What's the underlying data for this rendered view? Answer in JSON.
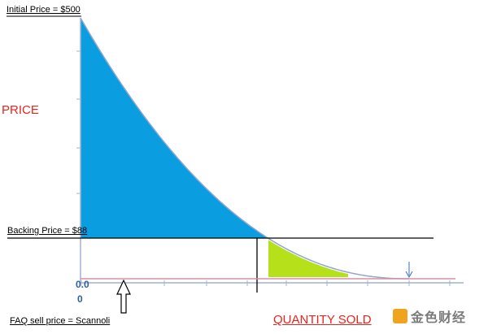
{
  "labels": {
    "initial_price": "Initial Price = $500",
    "price": "PRICE",
    "backing_price": "Backing Price = $88",
    "faq_sell_price": "FAQ sell price = Scannoli",
    "quantity_sold": "QUANTITY SOLD",
    "y_zero": "0.0",
    "x_zero": "0",
    "watermark": "金色财经"
  },
  "colors": {
    "area_above_backing": "#0a9ee0",
    "area_below_backing": "#b5e01a",
    "curve": "#8fa6cf",
    "axis": "#9fb3d1",
    "backing_line": "#000000",
    "sell_price_line": "#d98fa8",
    "accent_label": "#e8241f"
  },
  "icons": {
    "faq_pointer": "up-arrow-icon",
    "end_marker": "down-arrow-icon",
    "watermark_logo": "brand-logo-icon"
  },
  "chart_data": {
    "type": "area",
    "title": "",
    "xlabel": "QUANTITY SOLD",
    "ylabel": "PRICE",
    "curve": "decreasing convex bonding curve",
    "initial_price": 500,
    "backing_price": 88,
    "faq_sell_price": "Scannoli",
    "y_tick_labels": [
      "0.0"
    ],
    "x_tick_labels": [
      "0"
    ],
    "grid": false,
    "legend": "none"
  }
}
